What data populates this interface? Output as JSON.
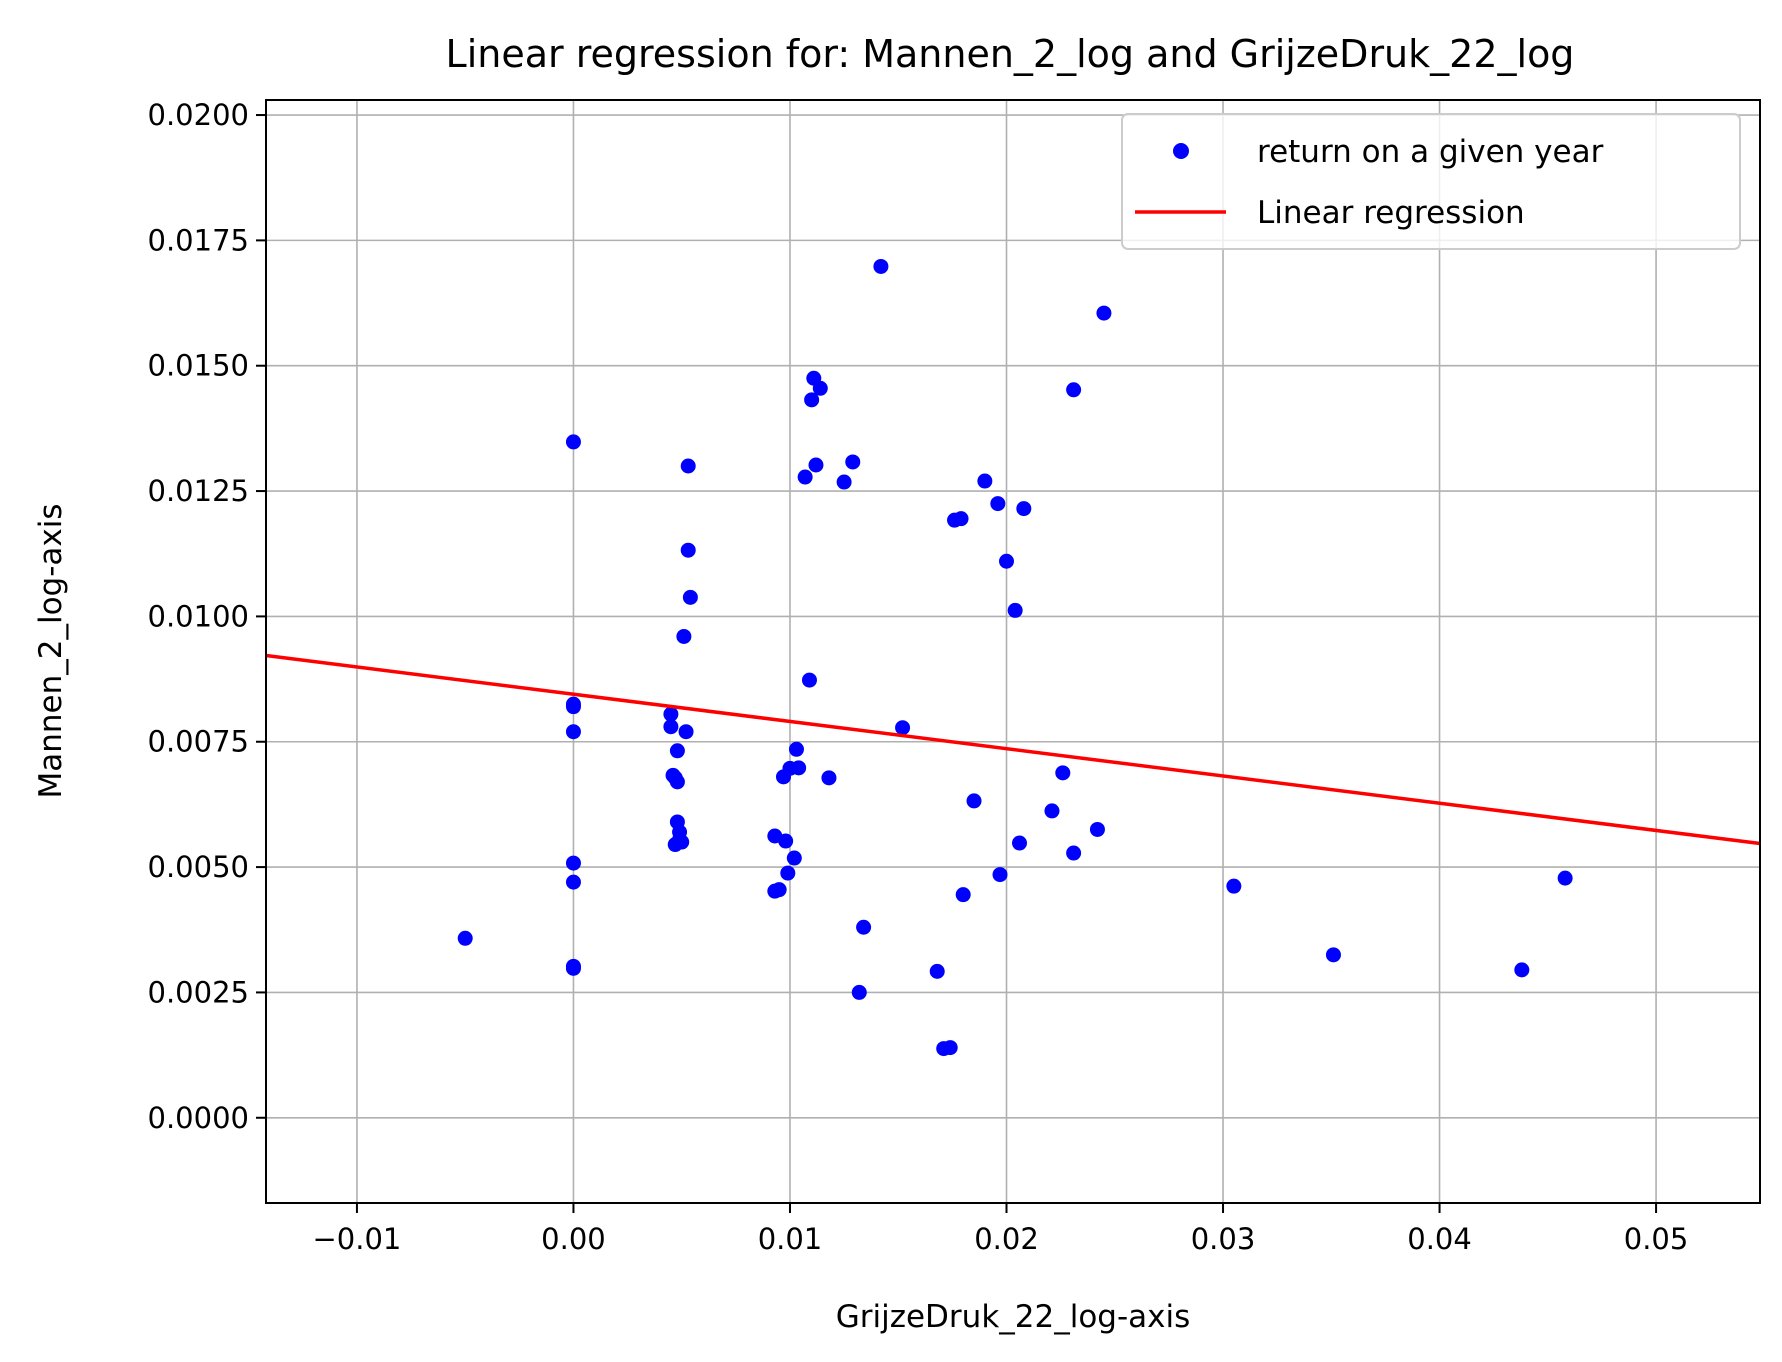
{
  "chart_data": {
    "type": "scatter",
    "title": "Linear regression for: Mannen_2_log and GrijzeDruk_22_log",
    "xlabel": "GrijzeDruk_22_log-axis",
    "ylabel": "Mannen_2_log-axis",
    "xlim": [
      -0.0142,
      0.0548
    ],
    "ylim": [
      -0.0017,
      0.0203
    ],
    "x_ticks": [
      "−0.01",
      "0.00",
      "0.01",
      "0.02",
      "0.03",
      "0.04",
      "0.05"
    ],
    "x_tick_values": [
      -0.01,
      0.0,
      0.01,
      0.02,
      0.03,
      0.04,
      0.05
    ],
    "y_ticks": [
      "0.0000",
      "0.0025",
      "0.0050",
      "0.0075",
      "0.0100",
      "0.0125",
      "0.0150",
      "0.0175",
      "0.0200"
    ],
    "y_tick_values": [
      0.0,
      0.0025,
      0.005,
      0.0075,
      0.01,
      0.0125,
      0.015,
      0.0175,
      0.02
    ],
    "grid": true,
    "legend_position": "top-right",
    "series": [
      {
        "name": "return on a given year",
        "kind": "scatter",
        "color": "#0000ff",
        "points": [
          [
            -0.005,
            0.00358
          ],
          [
            0.0,
            0.01348
          ],
          [
            0.0,
            0.00825
          ],
          [
            0.0,
            0.0082
          ],
          [
            0.0,
            0.0077
          ],
          [
            0.0,
            0.00508
          ],
          [
            0.0,
            0.0047
          ],
          [
            0.0,
            0.00302
          ],
          [
            0.0,
            0.00298
          ],
          [
            0.0045,
            0.00805
          ],
          [
            0.0045,
            0.0078
          ],
          [
            0.0046,
            0.00683
          ],
          [
            0.0047,
            0.00678
          ],
          [
            0.0047,
            0.00545
          ],
          [
            0.0048,
            0.00732
          ],
          [
            0.0048,
            0.0067
          ],
          [
            0.0048,
            0.0059
          ],
          [
            0.0049,
            0.0057
          ],
          [
            0.0049,
            0.00555
          ],
          [
            0.005,
            0.0055
          ],
          [
            0.0051,
            0.0096
          ],
          [
            0.0052,
            0.0077
          ],
          [
            0.0053,
            0.013
          ],
          [
            0.0053,
            0.01132
          ],
          [
            0.0054,
            0.01038
          ],
          [
            0.0093,
            0.00562
          ],
          [
            0.0093,
            0.00452
          ],
          [
            0.0095,
            0.00455
          ],
          [
            0.0097,
            0.0068
          ],
          [
            0.0098,
            0.00552
          ],
          [
            0.0099,
            0.00488
          ],
          [
            0.01,
            0.00697
          ],
          [
            0.0102,
            0.00518
          ],
          [
            0.0103,
            0.00735
          ],
          [
            0.0104,
            0.00698
          ],
          [
            0.0107,
            0.01278
          ],
          [
            0.0109,
            0.00873
          ],
          [
            0.011,
            0.01432
          ],
          [
            0.0111,
            0.01475
          ],
          [
            0.0112,
            0.01302
          ],
          [
            0.0114,
            0.01455
          ],
          [
            0.0118,
            0.00678
          ],
          [
            0.0125,
            0.01268
          ],
          [
            0.0129,
            0.01308
          ],
          [
            0.0132,
            0.0025
          ],
          [
            0.0134,
            0.0038
          ],
          [
            0.0142,
            0.01698
          ],
          [
            0.0152,
            0.00778
          ],
          [
            0.0168,
            0.00292
          ],
          [
            0.0171,
            0.00138
          ],
          [
            0.0174,
            0.0014
          ],
          [
            0.0176,
            0.01192
          ],
          [
            0.0179,
            0.01195
          ],
          [
            0.018,
            0.00445
          ],
          [
            0.0185,
            0.00632
          ],
          [
            0.019,
            0.0127
          ],
          [
            0.0196,
            0.01225
          ],
          [
            0.0197,
            0.00485
          ],
          [
            0.02,
            0.0111
          ],
          [
            0.0204,
            0.01012
          ],
          [
            0.0206,
            0.00548
          ],
          [
            0.0208,
            0.01215
          ],
          [
            0.0221,
            0.00612
          ],
          [
            0.0226,
            0.00688
          ],
          [
            0.0231,
            0.01452
          ],
          [
            0.0231,
            0.00528
          ],
          [
            0.0242,
            0.00575
          ],
          [
            0.0245,
            0.01605
          ],
          [
            0.0305,
            0.00462
          ],
          [
            0.0351,
            0.00325
          ],
          [
            0.0438,
            0.00295
          ],
          [
            0.0458,
            0.00478
          ]
        ]
      },
      {
        "name": "Linear regression",
        "kind": "line",
        "color": "#ff0000",
        "points": [
          [
            -0.0142,
            0.00922
          ],
          [
            0.0548,
            0.00547
          ]
        ]
      }
    ]
  }
}
